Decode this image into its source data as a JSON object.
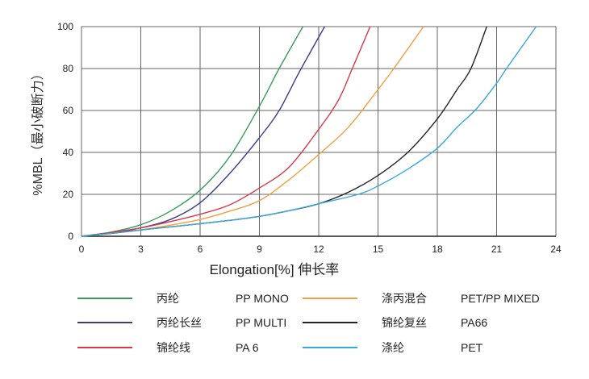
{
  "chart_data": {
    "type": "line",
    "title": "",
    "xlabel": "Elongation[%]  伸长率",
    "ylabel": "%MBL（最小破断力）",
    "xlim": [
      0,
      24
    ],
    "ylim": [
      0,
      100
    ],
    "xticks": [
      0,
      3,
      6,
      9,
      12,
      15,
      18,
      21,
      24
    ],
    "yticks": [
      0,
      20,
      40,
      60,
      80,
      100
    ],
    "grid": true,
    "legend_position": "bottom",
    "series": [
      {
        "name_cn": "丙纶",
        "name": "PP MONO",
        "color": "#3a9a5c",
        "x": [
          0,
          1.5,
          3,
          4.5,
          6,
          7.5,
          9,
          10,
          11.2
        ],
        "y": [
          0,
          2,
          5.5,
          12,
          22,
          38,
          62,
          80,
          100
        ]
      },
      {
        "name_cn": "丙纶长丝",
        "name": "PP MULTI",
        "color": "#3a3a8c",
        "x": [
          0,
          1.5,
          3,
          4.5,
          6,
          7.5,
          9,
          10,
          11,
          12.3
        ],
        "y": [
          0,
          1.5,
          4,
          8,
          16,
          30,
          47,
          60,
          78,
          100
        ]
      },
      {
        "name_cn": "锦纶线",
        "name": "PA 6",
        "color": "#d63a4a",
        "x": [
          0,
          1.5,
          3,
          4.5,
          6,
          7.5,
          9,
          10.5,
          12,
          13,
          13.7,
          14.6
        ],
        "y": [
          0,
          1.8,
          4,
          7,
          10.5,
          15,
          23,
          33,
          51,
          65,
          80,
          100
        ]
      },
      {
        "name_cn": "涤丙混合",
        "name": "PET/PP MIXED",
        "color": "#f0a040",
        "x": [
          0,
          1.5,
          3,
          4.5,
          6,
          7.5,
          9,
          10.5,
          12,
          13.5,
          15,
          15.8,
          17.3
        ],
        "y": [
          0,
          1.3,
          3,
          5.3,
          8,
          12,
          17,
          27,
          39,
          52,
          70,
          80,
          100
        ]
      },
      {
        "name_cn": "锦纶复丝",
        "name": "PA66",
        "color": "#222222",
        "x": [
          0,
          1.5,
          3,
          4.5,
          6,
          7.5,
          9,
          10.5,
          12,
          13.5,
          15,
          16.5,
          18,
          19,
          19.7,
          20.5
        ],
        "y": [
          0,
          1.4,
          3,
          4.5,
          6,
          7.6,
          9.5,
          12.2,
          15.5,
          21,
          29,
          40,
          56,
          70,
          80,
          100
        ]
      },
      {
        "name_cn": "涤纶",
        "name": "PET",
        "color": "#3aa8d8",
        "x": [
          0,
          1.5,
          3,
          4.5,
          6,
          7.5,
          9,
          10.5,
          12,
          14,
          15,
          16.5,
          18,
          19,
          20,
          21,
          21.5,
          23
        ],
        "y": [
          0,
          1.4,
          3,
          4.5,
          6,
          7.6,
          9.5,
          12.2,
          15.5,
          20,
          24,
          32,
          42,
          52,
          61,
          73,
          80,
          100
        ]
      }
    ]
  }
}
